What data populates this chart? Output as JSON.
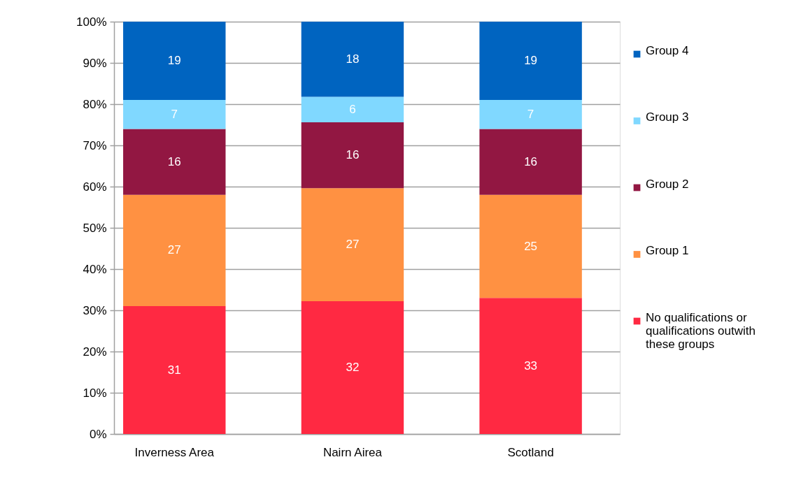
{
  "chart_data": {
    "type": "bar",
    "stacked": true,
    "categories": [
      "Inverness Area",
      "Nairn Airea",
      "Scotland"
    ],
    "series": [
      {
        "name": "No qualifications or qualifications outwith these groups",
        "color": "#ff2942",
        "values": [
          31,
          32.2,
          33
        ],
        "value_labels": [
          "31",
          "32",
          "33"
        ]
      },
      {
        "name": "Group 1",
        "color": "#ff9142",
        "values": [
          27,
          27.4,
          25
        ],
        "value_labels": [
          "27",
          "27",
          "25"
        ]
      },
      {
        "name": "Group 2",
        "color": "#921742",
        "values": [
          16,
          16.0,
          16
        ],
        "value_labels": [
          "16",
          "16",
          "16"
        ]
      },
      {
        "name": "Group 3",
        "color": "#80d8ff",
        "values": [
          7,
          6.2,
          7
        ],
        "value_labels": [
          "7",
          "6",
          "7"
        ]
      },
      {
        "name": "Group 4",
        "color": "#0064c0",
        "values": [
          19,
          18.2,
          19
        ],
        "value_labels": [
          "19",
          "18",
          "19"
        ]
      }
    ],
    "ylim": [
      0,
      100
    ],
    "yticks": [
      {
        "value": 0,
        "label": "0%"
      },
      {
        "value": 10,
        "label": "10%"
      },
      {
        "value": 20,
        "label": "20%"
      },
      {
        "value": 30,
        "label": "30%"
      },
      {
        "value": 40,
        "label": "40%"
      },
      {
        "value": 50,
        "label": "50%"
      },
      {
        "value": 60,
        "label": "60%"
      },
      {
        "value": 70,
        "label": "70%"
      },
      {
        "value": 80,
        "label": "80%"
      },
      {
        "value": 90,
        "label": "90%"
      },
      {
        "value": 100,
        "label": "100%"
      }
    ],
    "grid": "y",
    "legend": "right"
  }
}
